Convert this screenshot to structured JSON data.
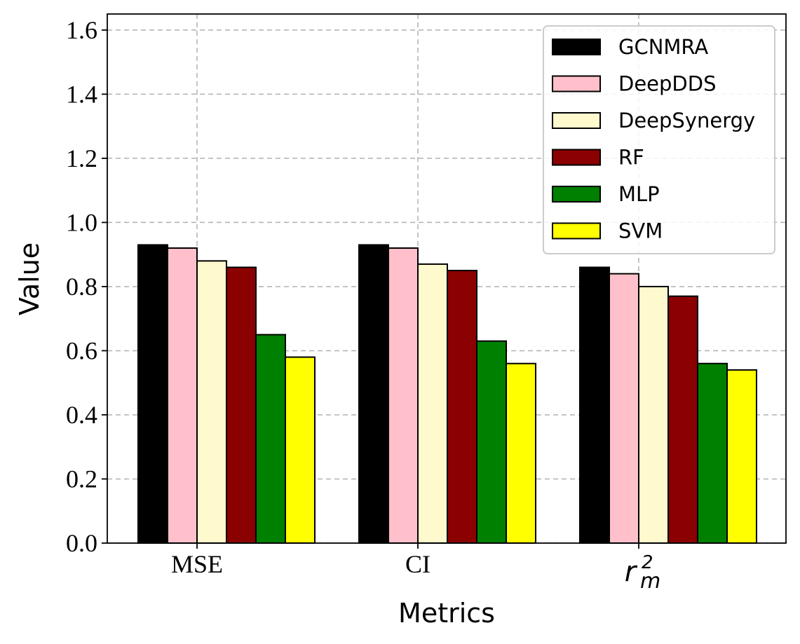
{
  "chart_data": {
    "type": "bar",
    "title": "",
    "xlabel": "Metrics",
    "ylabel": "Value",
    "ylim": [
      0,
      1.65
    ],
    "yticks": [
      "0.0",
      "0.2",
      "0.4",
      "0.6",
      "0.8",
      "1.0",
      "1.2",
      "1.4",
      "1.6"
    ],
    "categories": [
      "MSE",
      "CI",
      "r_m^2"
    ],
    "category_display": [
      {
        "base": "MSE",
        "sub": "",
        "sup": ""
      },
      {
        "base": "CI",
        "sub": "",
        "sup": ""
      },
      {
        "base": "r",
        "sub": "m",
        "sup": "2"
      }
    ],
    "grid": true,
    "legend_position": "top-right",
    "series": [
      {
        "name": "GCNMRA",
        "color": "#000000",
        "values": [
          0.93,
          0.93,
          0.86
        ]
      },
      {
        "name": "DeepDDS",
        "color": "#ffc0cb",
        "values": [
          0.92,
          0.92,
          0.84
        ]
      },
      {
        "name": "DeepSynergy",
        "color": "#fffacd",
        "values": [
          0.88,
          0.87,
          0.8
        ]
      },
      {
        "name": "RF",
        "color": "#8b0000",
        "values": [
          0.86,
          0.85,
          0.77
        ]
      },
      {
        "name": "MLP",
        "color": "#008000",
        "values": [
          0.65,
          0.63,
          0.56
        ]
      },
      {
        "name": "SVM",
        "color": "#ffff00",
        "values": [
          0.58,
          0.56,
          0.54
        ]
      }
    ]
  }
}
